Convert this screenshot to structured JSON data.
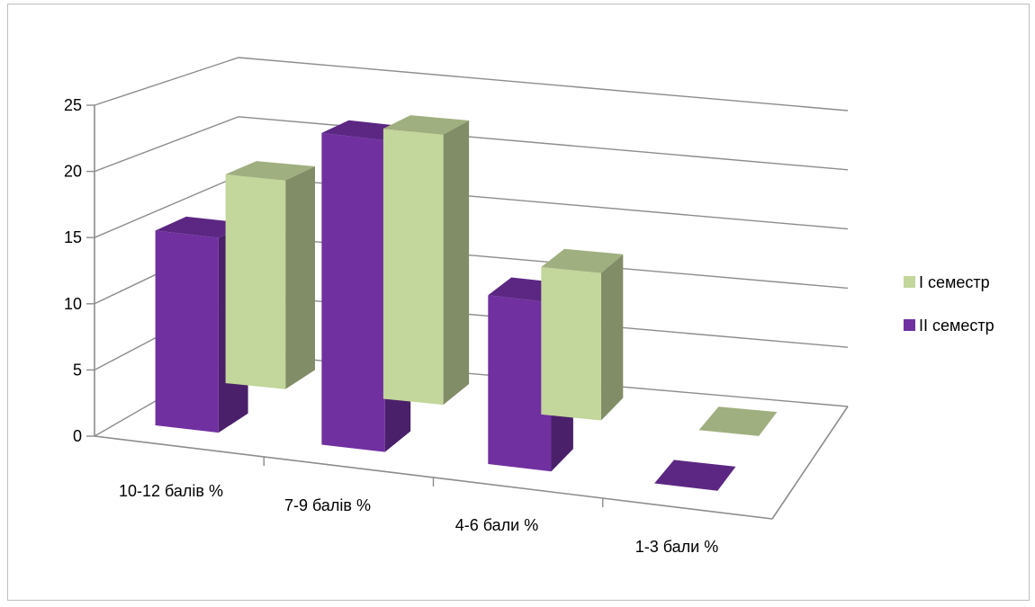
{
  "chart_data": {
    "type": "bar",
    "subtype": "3d-clustered-column",
    "categories": [
      "10-12 балів %",
      "7-9 балів %",
      "4-6 бали %",
      "1-3 бали %"
    ],
    "series": [
      {
        "name": "I семестр",
        "values": [
          17,
          22,
          12,
          0
        ],
        "color": "#C3D69B"
      },
      {
        "name": "II семестр",
        "values": [
          15,
          24,
          13,
          0
        ],
        "color": "#7030A0"
      }
    ],
    "yticks": [
      "0",
      "5",
      "10",
      "15",
      "20",
      "25"
    ],
    "ylim": [
      0,
      25
    ],
    "grid": true,
    "legend": "right"
  }
}
